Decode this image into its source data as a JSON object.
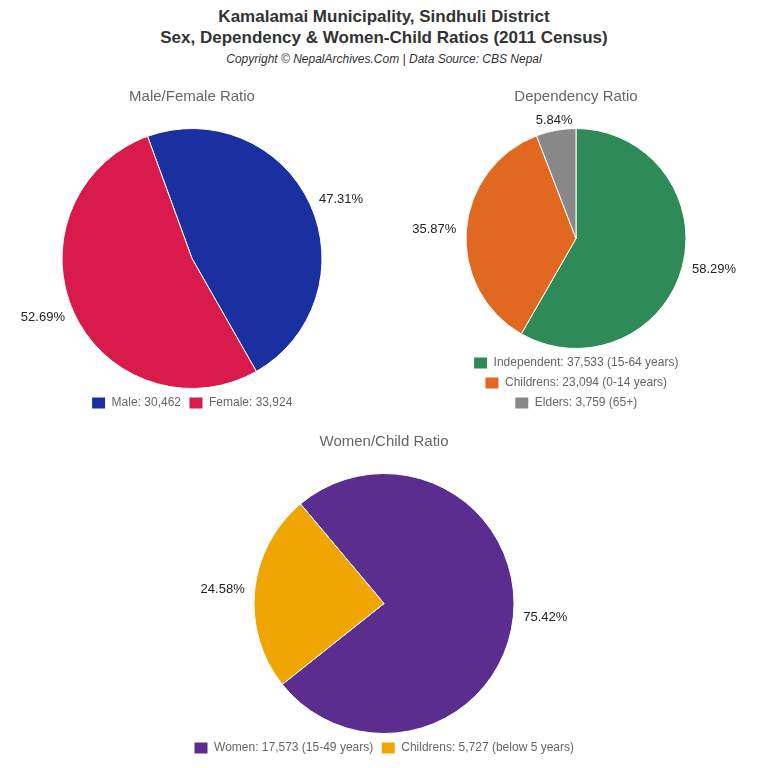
{
  "title": [
    "Kamalamai Municipality, Sindhuli District",
    "Sex, Dependency & Women-Child Ratios (2011 Census)"
  ],
  "subtitle": "Copyright © NepalArchives.Com | Data Source: CBS Nepal",
  "chart_data": [
    {
      "type": "pie",
      "title": "Male/Female Ratio",
      "categories": [
        "Male: 30,462",
        "Female: 33,924"
      ],
      "values": [
        47.31,
        52.69
      ],
      "value_labels": [
        "47.31%",
        "52.69%"
      ],
      "colors": [
        "#1a2fa0",
        "#d81b4a"
      ],
      "data_labels": true,
      "legend": "bottom"
    },
    {
      "type": "pie",
      "title": "Dependency Ratio",
      "categories": [
        "Independent: 37,533 (15-64 years)",
        "Childrens: 23,094 (0-14 years)",
        "Elders: 3,759 (65+)"
      ],
      "values": [
        58.29,
        35.87,
        5.84
      ],
      "value_labels": [
        "58.29%",
        "35.87%",
        "5.84%"
      ],
      "colors": [
        "#2e8b57",
        "#e06820",
        "#888888"
      ],
      "data_labels": true,
      "legend": "bottom"
    },
    {
      "type": "pie",
      "title": "Women/Child Ratio",
      "categories": [
        "Women: 17,573 (15-49 years)",
        "Childrens: 5,727 (below 5 years)"
      ],
      "values": [
        75.42,
        24.58
      ],
      "value_labels": [
        "75.42%",
        "24.58%"
      ],
      "colors": [
        "#5b2d8e",
        "#f0a500"
      ],
      "data_labels": true,
      "legend": "bottom"
    }
  ]
}
